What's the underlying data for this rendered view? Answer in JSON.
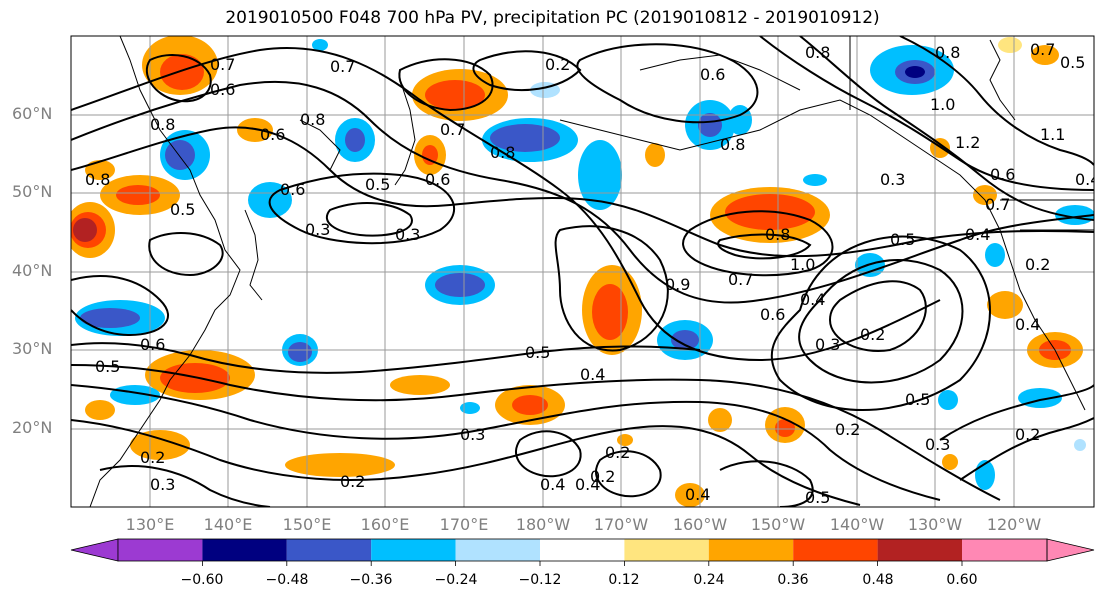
{
  "title": "2019010500 F048 700 hPa PV, precipitation PC (2019010812 - 2019010912)",
  "lat_labels": [
    "60°N",
    "50°N",
    "40°N",
    "30°N",
    "20°N"
  ],
  "lon_labels": [
    "130°E",
    "140°E",
    "150°E",
    "160°E",
    "170°E",
    "180°W",
    "170°W",
    "160°W",
    "150°W",
    "140°W",
    "130°W",
    "120°W"
  ],
  "colorbar": {
    "tick_labels": [
      "−0.60",
      "−0.48",
      "−0.36",
      "−0.24",
      "−0.12",
      "0.12",
      "0.24",
      "0.36",
      "0.48",
      "0.60"
    ],
    "colors": [
      "#9c3ad2",
      "#000080",
      "#3a57c8",
      "#00bfff",
      "#b0e2ff",
      "#ffffff",
      "#ffe57f",
      "#ffa500",
      "#ff4500",
      "#b22222",
      "#ff88b4"
    ]
  },
  "contour_labels": [
    "0.7",
    "0.2",
    "0.8",
    "0.7",
    "0.6",
    "0.6",
    "0.8",
    "0.8",
    "0.7",
    "0.8",
    "0.6",
    "0.5",
    "0.6",
    "0.3",
    "0.3",
    "0.8",
    "0.5",
    "0.6",
    "0.5",
    "0.5",
    "0.4",
    "0.3",
    "0.2",
    "0.2",
    "0.3",
    "0.2",
    "0.4",
    "0.4",
    "0.8",
    "0.7",
    "0.6",
    "0.4",
    "1.0",
    "0.8",
    "0.9",
    "0.5",
    "0.4",
    "0.3",
    "0.2",
    "0.2",
    "0.5",
    "0.3",
    "0.2",
    "0.2",
    "0.4",
    "0.5",
    "1.0",
    "1.2",
    "0.6",
    "0.3",
    "0.5",
    "0.4",
    "0.4",
    "0.7",
    "1.1",
    "0.6",
    "0.8",
    "0.7",
    "0.2"
  ]
}
